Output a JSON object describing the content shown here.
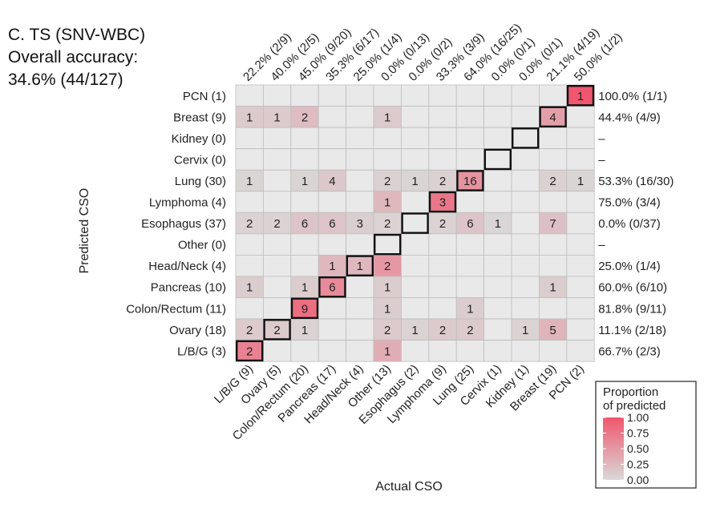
{
  "chart_data": {
    "type": "heatmap",
    "title": "C. TS (SNV-WBC)",
    "subtitle_label": "Overall accuracy:",
    "subtitle_value": "34.6% (44/127)",
    "xlabel": "Actual CSO",
    "ylabel": "Predicted CSO",
    "x_categories": [
      "L/B/G (9)",
      "Ovary (5)",
      "Colon/Rectum (20)",
      "Pancreas (17)",
      "Head/Neck (4)",
      "Other (13)",
      "Esophagus (2)",
      "Lymphoma (9)",
      "Lung (25)",
      "Cervix (1)",
      "Kidney (1)",
      "Breast (19)",
      "PCN (2)"
    ],
    "y_categories": [
      "PCN (1)",
      "Breast (9)",
      "Kidney (0)",
      "Cervix (0)",
      "Lung (30)",
      "Lymphoma (4)",
      "Esophagus (37)",
      "Other (0)",
      "Head/Neck (4)",
      "Pancreas (10)",
      "Colon/Rectum (11)",
      "Ovary (18)",
      "L/B/G (3)"
    ],
    "column_accuracy": [
      "22.2% (2/9)",
      "40.0% (2/5)",
      "45.0% (9/20)",
      "35.3% (6/17)",
      "25.0% (1/4)",
      "0.0% (0/13)",
      "0.0% (0/2)",
      "33.3% (3/9)",
      "64.0% (16/25)",
      "0.0% (0/1)",
      "0.0% (0/1)",
      "21.1% (4/19)",
      "50.0% (1/2)"
    ],
    "row_accuracy": [
      "100.0% (1/1)",
      "44.4% (4/9)",
      "–",
      "–",
      "53.3% (16/30)",
      "75.0% (3/4)",
      "0.0% (0/37)",
      "–",
      "25.0% (1/4)",
      "60.0% (6/10)",
      "81.8% (9/11)",
      "11.1% (2/18)",
      "66.7% (2/3)"
    ],
    "matrix": [
      [
        null,
        null,
        null,
        null,
        null,
        null,
        null,
        null,
        null,
        null,
        null,
        null,
        1
      ],
      [
        1,
        1,
        2,
        null,
        null,
        1,
        null,
        null,
        null,
        null,
        null,
        4,
        null
      ],
      [
        null,
        null,
        null,
        null,
        null,
        null,
        null,
        null,
        null,
        null,
        null,
        null,
        null
      ],
      [
        null,
        null,
        null,
        null,
        null,
        null,
        null,
        null,
        null,
        null,
        null,
        null,
        null
      ],
      [
        1,
        null,
        1,
        4,
        null,
        2,
        1,
        2,
        16,
        null,
        null,
        2,
        1
      ],
      [
        null,
        null,
        null,
        null,
        null,
        1,
        null,
        3,
        null,
        null,
        null,
        null,
        null
      ],
      [
        2,
        2,
        6,
        6,
        3,
        2,
        null,
        2,
        6,
        1,
        null,
        7,
        null
      ],
      [
        null,
        null,
        null,
        null,
        null,
        null,
        null,
        null,
        null,
        null,
        null,
        null,
        null
      ],
      [
        null,
        null,
        null,
        1,
        1,
        2,
        null,
        null,
        null,
        null,
        null,
        null,
        null
      ],
      [
        1,
        null,
        1,
        6,
        null,
        1,
        null,
        null,
        null,
        null,
        null,
        1,
        null
      ],
      [
        null,
        null,
        9,
        null,
        null,
        1,
        null,
        null,
        1,
        null,
        null,
        null,
        null
      ],
      [
        2,
        2,
        1,
        null,
        null,
        2,
        1,
        2,
        2,
        null,
        1,
        5,
        null
      ],
      [
        2,
        null,
        null,
        null,
        null,
        1,
        null,
        null,
        null,
        null,
        null,
        null,
        null
      ]
    ],
    "legend": {
      "title_line1": "Proportion",
      "title_line2": "of predicted",
      "ticks": [
        "1.00",
        "0.75",
        "0.50",
        "0.25",
        "0.00"
      ],
      "range": [
        0,
        1
      ]
    },
    "colors": {
      "empty": "#e9e9e9",
      "low": "#d9d9d9",
      "high": "#f0566e",
      "grid": "#bdbdbd",
      "diagonal_border": "#111111"
    }
  }
}
